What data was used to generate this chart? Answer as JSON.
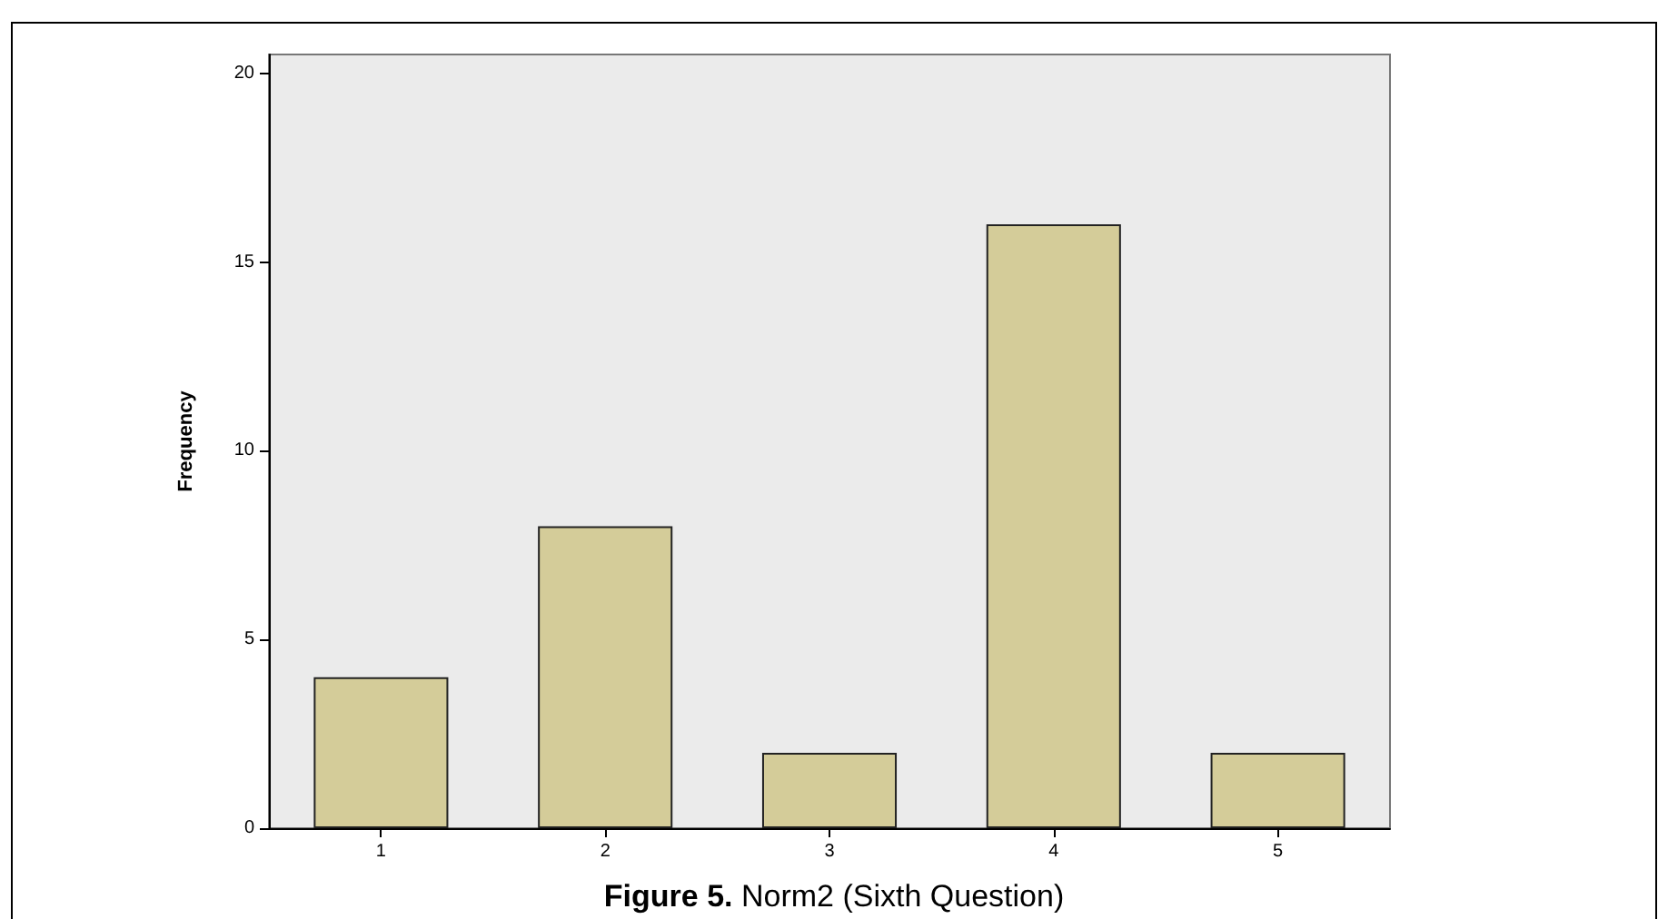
{
  "chart_data": {
    "type": "bar",
    "title": "Figure 5. Norm2 (Sixth Question)",
    "ylabel": "Frequency",
    "categories": [
      "1",
      "2",
      "3",
      "4",
      "5"
    ],
    "values": [
      4,
      8,
      2,
      16,
      2
    ],
    "color": "#d4cc99",
    "ylim": [
      0,
      20.5
    ],
    "yticks": [
      0,
      5,
      10,
      15,
      20
    ],
    "grid": false
  }
}
